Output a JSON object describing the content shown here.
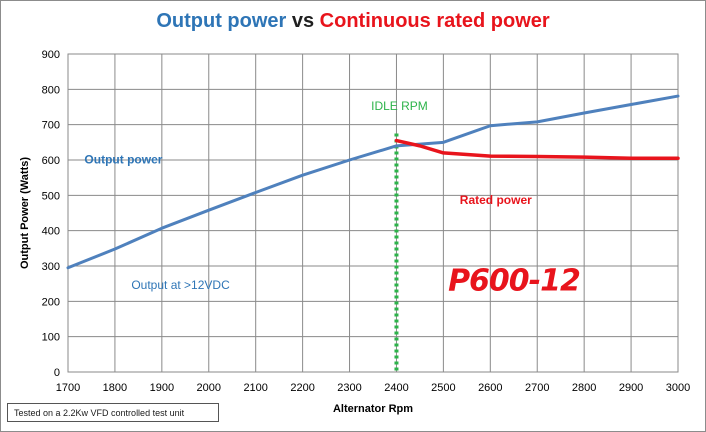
{
  "title": {
    "part1": "Output power",
    "part2": " vs ",
    "part3": "Continuous rated power",
    "part1_color": "#2e75b6",
    "part3_color": "#e8141c"
  },
  "note": "Tested on a 2.2Kw VFD controlled test unit",
  "chart_data": {
    "type": "line",
    "title": "Output power vs Continuous rated power",
    "xlabel": "Alternator Rpm",
    "ylabel": "Output Power (Watts)",
    "xlim": [
      1700,
      3000
    ],
    "ylim": [
      0,
      900
    ],
    "x_ticks": [
      1700,
      1800,
      1900,
      2000,
      2100,
      2200,
      2300,
      2400,
      2500,
      2600,
      2700,
      2800,
      2900,
      3000
    ],
    "y_ticks": [
      0,
      100,
      200,
      300,
      400,
      500,
      600,
      700,
      800,
      900
    ],
    "grid": true,
    "legend": "none",
    "series": [
      {
        "name": "Output power",
        "color": "#4f81bd",
        "x": [
          1700,
          1800,
          1900,
          2000,
          2100,
          2200,
          2300,
          2400,
          2500,
          2600,
          2700,
          2800,
          2900,
          3000
        ],
        "y": [
          295,
          348,
          407,
          458,
          508,
          557,
          600,
          640,
          650,
          697,
          708,
          733,
          757,
          781
        ]
      },
      {
        "name": "Rated power",
        "color": "#e8141c",
        "x": [
          2400,
          2450,
          2500,
          2600,
          2700,
          2800,
          2900,
          3000
        ],
        "y": [
          655,
          640,
          620,
          611,
          610,
          608,
          605,
          605
        ]
      }
    ],
    "reference_line": {
      "x": 2400,
      "label": "IDLE RPM",
      "color": "#2db34a"
    },
    "annotations": [
      {
        "text": "Output power",
        "x": 1735,
        "y": 590,
        "color": "#2e75b6"
      },
      {
        "text": "Rated power",
        "x": 2535,
        "y": 475,
        "color": "#e8141c"
      },
      {
        "text": "Output at >12VDC",
        "x": 1835,
        "y": 235,
        "color": "#2e75b6"
      },
      {
        "text": "P600-12",
        "x": 2510,
        "y": 230,
        "color": "#e8141c"
      }
    ]
  }
}
